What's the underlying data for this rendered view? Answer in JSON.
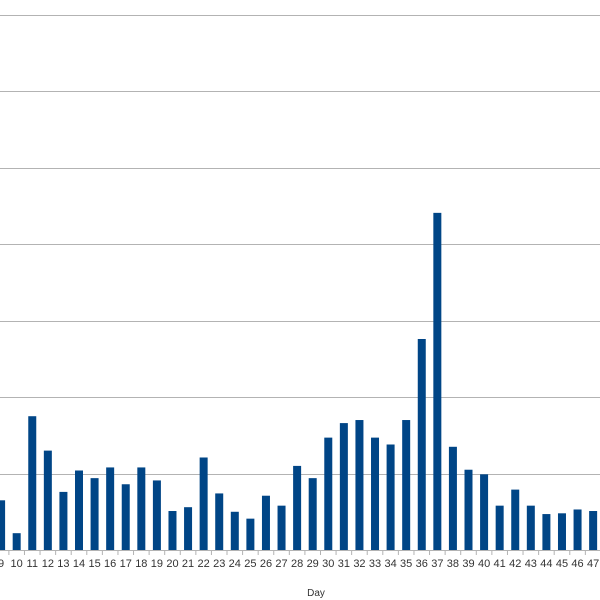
{
  "chart_data": {
    "type": "bar",
    "title": "",
    "xlabel": "Day",
    "ylabel": "",
    "ylim": [
      0,
      7
    ],
    "grid": true,
    "bar_color": "#004586",
    "grid_color": "#b3b3b3",
    "categories": [
      "9",
      "10",
      "11",
      "12",
      "13",
      "14",
      "15",
      "16",
      "17",
      "18",
      "19",
      "20",
      "21",
      "22",
      "23",
      "24",
      "25",
      "26",
      "27",
      "28",
      "29",
      "30",
      "31",
      "32",
      "33",
      "34",
      "35",
      "36",
      "37",
      "38",
      "39",
      "40",
      "41",
      "42",
      "43",
      "44",
      "45",
      "46",
      "47"
    ],
    "values": [
      0.65,
      0.22,
      1.75,
      1.3,
      0.76,
      1.04,
      0.94,
      1.08,
      0.86,
      1.08,
      0.91,
      0.51,
      0.56,
      1.21,
      0.74,
      0.5,
      0.41,
      0.71,
      0.58,
      1.1,
      0.94,
      1.47,
      1.66,
      1.7,
      1.47,
      1.38,
      1.7,
      2.76,
      4.41,
      1.35,
      1.05,
      0.99,
      0.58,
      0.79,
      0.58,
      0.47,
      0.48,
      0.53,
      0.51
    ]
  }
}
